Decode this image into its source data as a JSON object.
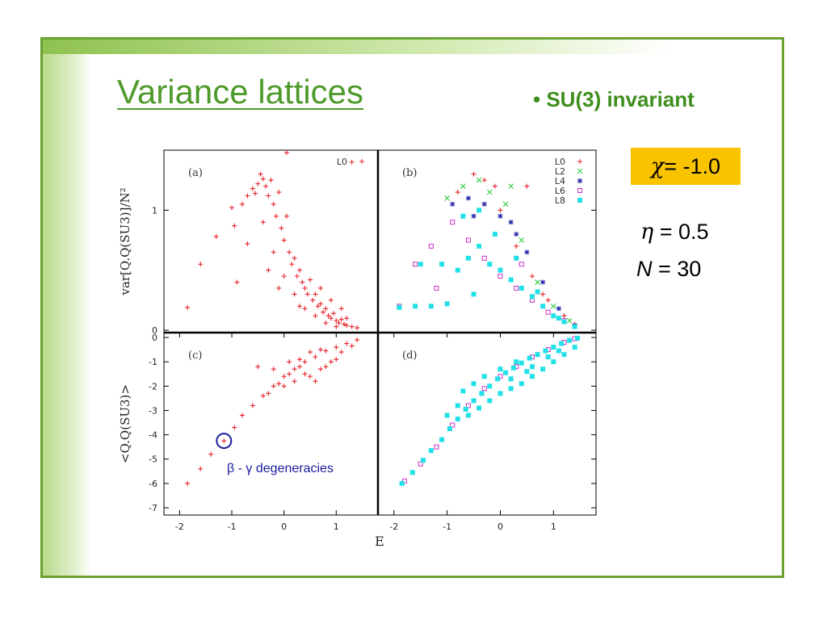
{
  "slide": {
    "title": "Variance lattices",
    "bullet": "• SU(3) invariant",
    "params": {
      "chi_sym": "χ",
      "chi_val": " = -1.0",
      "eta_sym": "η",
      "eta_val": " = 0.5",
      "n_sym": "N",
      "n_val": " = 30"
    },
    "annotation": "β - γ degeneracies",
    "colors": {
      "accent": "#4d9a2a",
      "border": "#6aa232",
      "highlight": "#f9c300",
      "annotation": "#1a1aa0"
    }
  },
  "chart_data": [
    {
      "type": "scatter",
      "panel_label": "(a)",
      "ylabel": "var[Q.Q(SU3)]/N²",
      "xlim": [
        -2.3,
        1.8
      ],
      "ylim": [
        -0.02,
        1.5
      ],
      "yticks": [
        0,
        1
      ],
      "legend": "top-right",
      "series": [
        {
          "name": "L0",
          "color": "#e8232b",
          "marker": "+",
          "points": [
            [
              -1.85,
              0.19
            ],
            [
              -1.3,
              0.78
            ],
            [
              -1.0,
              1.02
            ],
            [
              -0.95,
              0.87
            ],
            [
              -0.8,
              1.05
            ],
            [
              -0.7,
              1.12
            ],
            [
              -0.6,
              1.18
            ],
            [
              -0.55,
              1.14
            ],
            [
              -0.5,
              1.22
            ],
            [
              -0.45,
              1.3
            ],
            [
              -0.4,
              1.26
            ],
            [
              -0.35,
              1.2
            ],
            [
              -0.3,
              1.12
            ],
            [
              -0.25,
              1.25
            ],
            [
              -0.2,
              1.05
            ],
            [
              -0.15,
              0.95
            ],
            [
              -0.1,
              1.15
            ],
            [
              -0.05,
              0.85
            ],
            [
              0.0,
              0.75
            ],
            [
              0.05,
              0.95
            ],
            [
              0.1,
              0.65
            ],
            [
              0.15,
              0.55
            ],
            [
              0.2,
              0.6
            ],
            [
              0.25,
              0.45
            ],
            [
              0.3,
              0.5
            ],
            [
              0.35,
              0.4
            ],
            [
              0.4,
              0.35
            ],
            [
              0.45,
              0.3
            ],
            [
              0.5,
              0.42
            ],
            [
              0.55,
              0.25
            ],
            [
              0.6,
              0.3
            ],
            [
              0.65,
              0.2
            ],
            [
              0.7,
              0.22
            ],
            [
              0.75,
              0.15
            ],
            [
              0.8,
              0.18
            ],
            [
              0.85,
              0.12
            ],
            [
              0.9,
              0.1
            ],
            [
              0.95,
              0.14
            ],
            [
              1.0,
              0.08
            ],
            [
              1.05,
              0.06
            ],
            [
              1.1,
              0.09
            ],
            [
              1.15,
              0.05
            ],
            [
              1.2,
              0.04
            ],
            [
              1.3,
              0.03
            ],
            [
              1.4,
              0.02
            ],
            [
              -1.6,
              0.55
            ],
            [
              -0.9,
              0.4
            ],
            [
              -0.7,
              0.72
            ],
            [
              -0.4,
              0.9
            ],
            [
              -0.2,
              0.65
            ],
            [
              0.0,
              0.45
            ],
            [
              0.2,
              0.3
            ],
            [
              0.4,
              0.18
            ],
            [
              0.6,
              0.12
            ],
            [
              0.8,
              0.06
            ],
            [
              1.0,
              0.03
            ],
            [
              1.2,
              0.1
            ],
            [
              0.05,
              1.48
            ],
            [
              1.3,
              1.4
            ],
            [
              -0.3,
              0.5
            ],
            [
              -0.1,
              0.35
            ],
            [
              0.3,
              0.2
            ],
            [
              0.7,
              0.35
            ],
            [
              0.9,
              0.25
            ],
            [
              1.1,
              0.18
            ]
          ]
        }
      ]
    },
    {
      "type": "scatter",
      "panel_label": "(b)",
      "xlim": [
        -2.3,
        1.8
      ],
      "ylim": [
        -0.02,
        1.5
      ],
      "legend": "top-right",
      "series": [
        {
          "name": "L0",
          "color": "#e8232b",
          "marker": "+",
          "points": [
            [
              -0.8,
              1.15
            ],
            [
              -0.5,
              1.3
            ],
            [
              -0.3,
              1.25
            ],
            [
              0.0,
              1.0
            ],
            [
              0.3,
              0.7
            ],
            [
              0.6,
              0.45
            ],
            [
              0.9,
              0.25
            ],
            [
              1.2,
              0.12
            ],
            [
              1.4,
              0.05
            ],
            [
              -0.1,
              1.2
            ],
            [
              0.5,
              1.2
            ],
            [
              0.8,
              0.3
            ]
          ]
        },
        {
          "name": "L2",
          "color": "#2ecc40",
          "marker": "x",
          "points": [
            [
              -0.7,
              1.2
            ],
            [
              -0.4,
              1.25
            ],
            [
              -0.2,
              1.15
            ],
            [
              0.1,
              1.05
            ],
            [
              0.4,
              0.75
            ],
            [
              0.7,
              0.4
            ],
            [
              1.0,
              0.2
            ],
            [
              1.3,
              0.08
            ],
            [
              -1.0,
              1.1
            ],
            [
              0.2,
              1.2
            ]
          ]
        },
        {
          "name": "L4",
          "color": "#2222aa",
          "marker": "*",
          "points": [
            [
              -0.9,
              1.05
            ],
            [
              -0.6,
              1.1
            ],
            [
              -0.3,
              1.05
            ],
            [
              0.0,
              0.95
            ],
            [
              0.3,
              0.8
            ],
            [
              0.5,
              0.65
            ],
            [
              0.8,
              0.4
            ],
            [
              1.1,
              0.18
            ],
            [
              1.4,
              0.04
            ],
            [
              -0.5,
              0.95
            ],
            [
              0.2,
              0.9
            ]
          ]
        },
        {
          "name": "L6",
          "color": "#cc33cc",
          "marker": "square-open",
          "points": [
            [
              -1.9,
              0.2
            ],
            [
              -1.6,
              0.55
            ],
            [
              -1.2,
              0.35
            ],
            [
              -0.9,
              0.9
            ],
            [
              -0.6,
              0.75
            ],
            [
              -0.3,
              0.6
            ],
            [
              0.0,
              0.45
            ],
            [
              0.3,
              0.35
            ],
            [
              0.6,
              0.25
            ],
            [
              0.9,
              0.15
            ],
            [
              1.2,
              0.08
            ],
            [
              -1.3,
              0.7
            ],
            [
              0.4,
              0.55
            ]
          ]
        },
        {
          "name": "L8",
          "color": "#22e0e8",
          "marker": "square-filled",
          "points": [
            [
              -1.9,
              0.19
            ],
            [
              -1.6,
              0.2
            ],
            [
              -1.3,
              0.2
            ],
            [
              -1.0,
              0.22
            ],
            [
              -0.8,
              0.5
            ],
            [
              -0.6,
              0.6
            ],
            [
              -0.4,
              0.7
            ],
            [
              -0.2,
              0.55
            ],
            [
              0.0,
              0.5
            ],
            [
              0.2,
              0.42
            ],
            [
              0.4,
              0.35
            ],
            [
              0.6,
              0.28
            ],
            [
              0.8,
              0.2
            ],
            [
              1.0,
              0.12
            ],
            [
              1.2,
              0.07
            ],
            [
              1.4,
              0.03
            ],
            [
              -1.1,
              0.55
            ],
            [
              -0.7,
              0.95
            ],
            [
              -0.4,
              1.0
            ],
            [
              -0.1,
              0.8
            ],
            [
              0.3,
              0.6
            ],
            [
              0.7,
              0.32
            ],
            [
              1.1,
              0.1
            ],
            [
              -1.5,
              0.55
            ],
            [
              -0.5,
              0.3
            ]
          ]
        }
      ]
    },
    {
      "type": "scatter",
      "panel_label": "(c)",
      "xlabel": "E",
      "ylabel": "<Q.Q(SU3)>",
      "xlim": [
        -2.3,
        1.8
      ],
      "ylim": [
        -7.3,
        0.2
      ],
      "xticks": [
        -2,
        -1,
        0,
        1
      ],
      "yticks": [
        0,
        -1,
        -2,
        -3,
        -4,
        -5,
        -6,
        -7
      ],
      "series": [
        {
          "name": "L0",
          "color": "#e8232b",
          "marker": "+",
          "points": [
            [
              -1.85,
              -6.0
            ],
            [
              -1.6,
              -5.4
            ],
            [
              -1.4,
              -4.8
            ],
            [
              -1.15,
              -4.25
            ],
            [
              -0.95,
              -3.7
            ],
            [
              -0.8,
              -3.2
            ],
            [
              -0.6,
              -2.8
            ],
            [
              -0.4,
              -2.4
            ],
            [
              -0.2,
              -2.0
            ],
            [
              0.0,
              -1.6
            ],
            [
              0.2,
              -1.3
            ],
            [
              0.4,
              -1.0
            ],
            [
              0.6,
              -0.8
            ],
            [
              0.8,
              -0.55
            ],
            [
              1.0,
              -0.4
            ],
            [
              1.2,
              -0.25
            ],
            [
              1.4,
              -0.1
            ],
            [
              -0.3,
              -2.3
            ],
            [
              -0.1,
              -1.9
            ],
            [
              0.1,
              -1.5
            ],
            [
              0.3,
              -1.2
            ],
            [
              0.5,
              -1.6
            ],
            [
              0.7,
              -1.3
            ],
            [
              0.9,
              -1.0
            ],
            [
              1.1,
              -0.6
            ],
            [
              1.3,
              -0.35
            ],
            [
              0.0,
              -2.0
            ],
            [
              0.2,
              -1.8
            ],
            [
              0.4,
              -1.5
            ],
            [
              0.6,
              -1.8
            ],
            [
              0.8,
              -1.2
            ],
            [
              1.0,
              -0.9
            ],
            [
              -0.5,
              -1.2
            ],
            [
              -0.2,
              -1.3
            ],
            [
              0.1,
              -1.0
            ],
            [
              0.3,
              -0.9
            ],
            [
              0.5,
              -0.6
            ],
            [
              0.7,
              -0.5
            ]
          ]
        }
      ]
    },
    {
      "type": "scatter",
      "panel_label": "(d)",
      "xlim": [
        -2.3,
        1.8
      ],
      "ylim": [
        -7.3,
        0.2
      ],
      "xticks": [
        -2,
        -1,
        0,
        1
      ],
      "series": [
        {
          "name": "L6",
          "color": "#cc33cc",
          "marker": "square-open",
          "points": [
            [
              -1.8,
              -5.9
            ],
            [
              -1.5,
              -5.2
            ],
            [
              -1.2,
              -4.5
            ],
            [
              -0.9,
              -3.6
            ],
            [
              -0.6,
              -2.8
            ],
            [
              -0.3,
              -2.1
            ],
            [
              0.0,
              -1.6
            ],
            [
              0.3,
              -1.2
            ],
            [
              0.6,
              -0.8
            ],
            [
              0.9,
              -0.5
            ],
            [
              1.2,
              -0.2
            ],
            [
              1.4,
              -0.05
            ]
          ]
        },
        {
          "name": "L8",
          "color": "#22e0e8",
          "marker": "square-filled",
          "points": [
            [
              -1.85,
              -6.0
            ],
            [
              -1.65,
              -5.55
            ],
            [
              -1.45,
              -5.05
            ],
            [
              -1.3,
              -4.65
            ],
            [
              -1.1,
              -4.2
            ],
            [
              -0.95,
              -3.75
            ],
            [
              -0.8,
              -3.35
            ],
            [
              -0.65,
              -2.95
            ],
            [
              -0.5,
              -2.6
            ],
            [
              -0.35,
              -2.3
            ],
            [
              -0.2,
              -2.0
            ],
            [
              -0.05,
              -1.7
            ],
            [
              0.1,
              -1.45
            ],
            [
              0.25,
              -1.25
            ],
            [
              0.4,
              -1.05
            ],
            [
              0.55,
              -0.85
            ],
            [
              0.7,
              -0.7
            ],
            [
              0.85,
              -0.55
            ],
            [
              1.0,
              -0.4
            ],
            [
              1.15,
              -0.25
            ],
            [
              1.3,
              -0.12
            ],
            [
              1.45,
              -0.03
            ],
            [
              -0.6,
              -3.2
            ],
            [
              -0.4,
              -2.9
            ],
            [
              -0.2,
              -2.6
            ],
            [
              0.0,
              -2.3
            ],
            [
              0.2,
              -2.1
            ],
            [
              0.4,
              -1.9
            ],
            [
              0.6,
              -1.6
            ],
            [
              0.8,
              -1.3
            ],
            [
              1.0,
              -1.0
            ],
            [
              1.2,
              -0.7
            ],
            [
              1.4,
              -0.4
            ],
            [
              -0.3,
              -1.6
            ],
            [
              0.0,
              -1.3
            ],
            [
              0.3,
              -1.0
            ],
            [
              0.6,
              -1.2
            ],
            [
              0.9,
              -0.8
            ],
            [
              -0.7,
              -2.2
            ],
            [
              -0.5,
              -1.9
            ],
            [
              0.2,
              -1.7
            ],
            [
              0.5,
              -1.4
            ],
            [
              1.1,
              -0.55
            ],
            [
              -1.0,
              -3.2
            ],
            [
              -0.8,
              -2.8
            ]
          ]
        }
      ]
    }
  ]
}
